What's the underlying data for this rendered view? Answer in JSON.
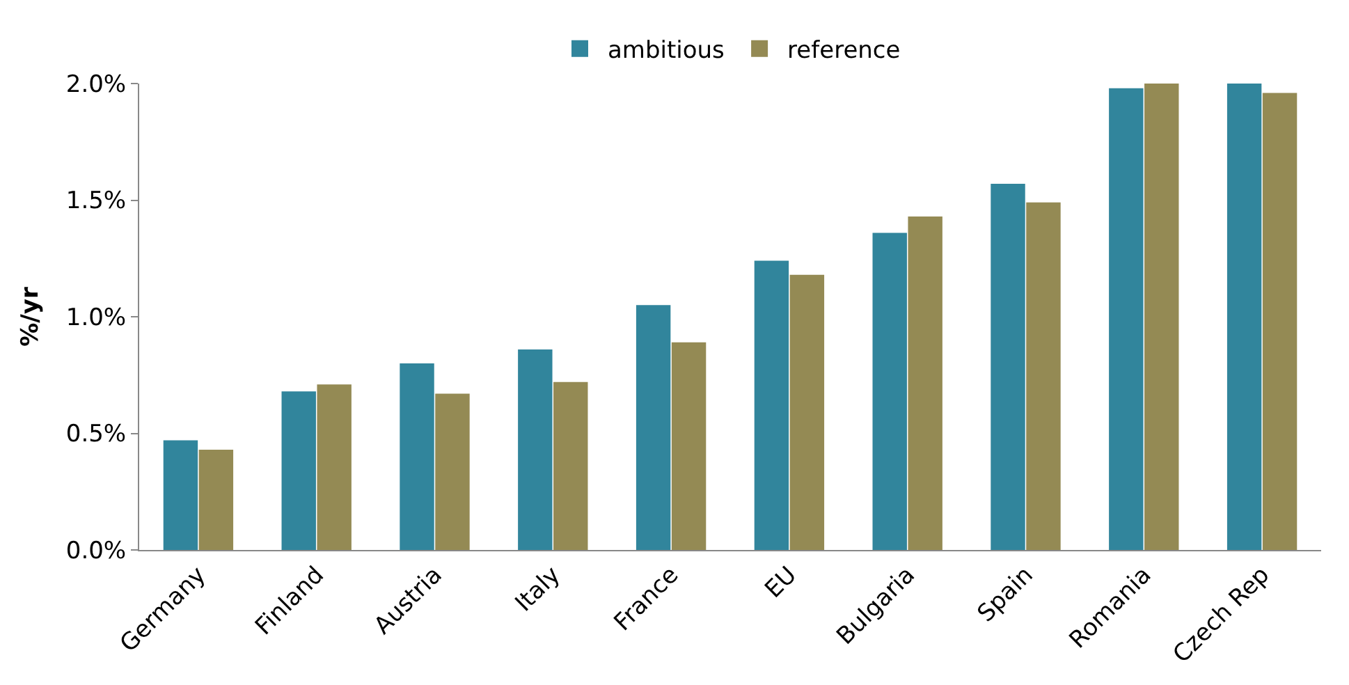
{
  "chart_data": {
    "type": "bar",
    "ylabel": "%/yr",
    "categories": [
      "Germany",
      "Finland",
      "Austria",
      "Italy",
      "France",
      "EU",
      "Bulgaria",
      "Spain",
      "Romania",
      "Czech Rep"
    ],
    "series": [
      {
        "name": "ambitious",
        "color": "#31859c",
        "values": [
          0.47,
          0.68,
          0.8,
          0.86,
          1.05,
          1.24,
          1.36,
          1.57,
          1.98,
          2.0
        ]
      },
      {
        "name": "reference",
        "color": "#948a54",
        "values": [
          0.43,
          0.71,
          0.67,
          0.72,
          0.89,
          1.18,
          1.43,
          1.49,
          2.0,
          1.96
        ]
      }
    ],
    "ylim": [
      0,
      2.0
    ],
    "yticks": [
      {
        "value": 0,
        "label": "0.0%"
      },
      {
        "value": 0.5,
        "label": "0.5%"
      },
      {
        "value": 1.0,
        "label": "1.0%"
      },
      {
        "value": 1.5,
        "label": "1.5%"
      },
      {
        "value": 2.0,
        "label": "2.0%"
      }
    ],
    "legend": "top"
  }
}
